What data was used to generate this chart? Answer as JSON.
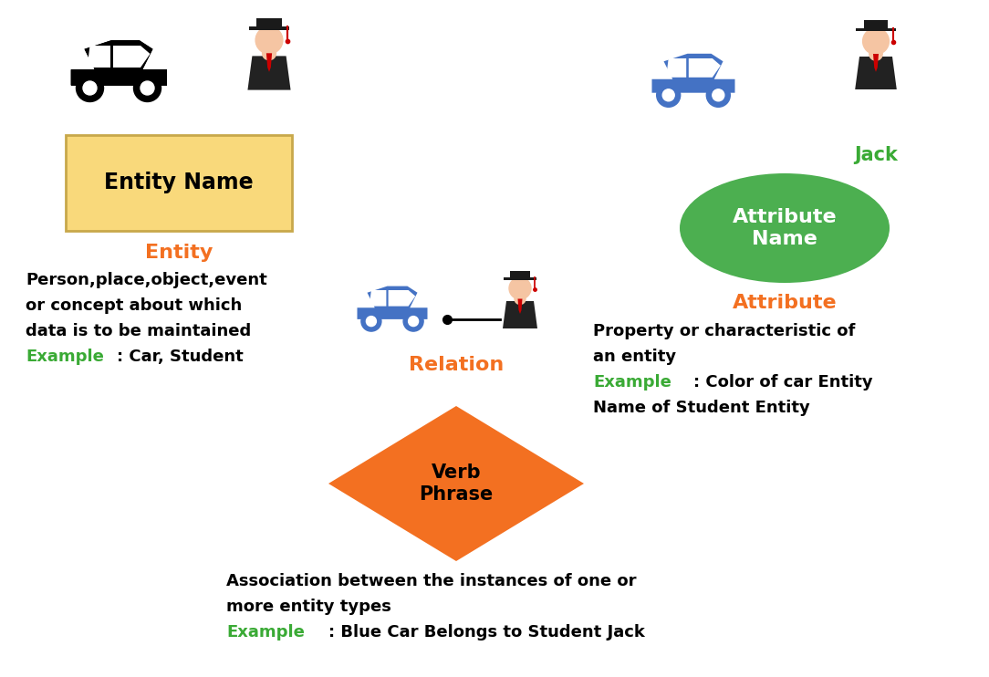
{
  "bg_color": "#ffffff",
  "orange_color": "#F37021",
  "green_color": "#3AAA35",
  "blue_car_color": "#4472C4",
  "yellow_box_color": "#F9D97B",
  "yellow_box_edge": "#C8A84B",
  "relation_diamond_color": "#F37021",
  "attribute_ellipse_color": "#4CAF50",
  "entity_box_text": "Entity Name",
  "attribute_ellipse_text": "Attribute\nName",
  "relation_diamond_text": "Verb\nPhrase",
  "entity_label": "Entity",
  "attribute_label": "Attribute",
  "relation_label": "Relation",
  "jack_label": "Jack",
  "entity_desc_line1": "Person,place,object,event",
  "entity_desc_line2": "or concept about which",
  "entity_desc_line3": "data is to be maintained",
  "entity_example_colored": "Example",
  "entity_example_black": ": Car, Student",
  "attribute_desc_line1": "Property or characteristic of",
  "attribute_desc_line2": "an entity",
  "attribute_example_colored": "Example",
  "attribute_example_black1": ": Color of car Entity",
  "attribute_desc_line3": "Name of Student Entity",
  "relation_desc_line1": "Association between the instances of one or",
  "relation_desc_line2": "more entity types",
  "relation_example_colored": "Example",
  "relation_example_black": ": Blue Car Belongs to Student Jack",
  "skin_color": "#F5C5A3",
  "gown_color": "#222222",
  "cap_color": "#1a1a1a",
  "tie_color": "#CC0000"
}
